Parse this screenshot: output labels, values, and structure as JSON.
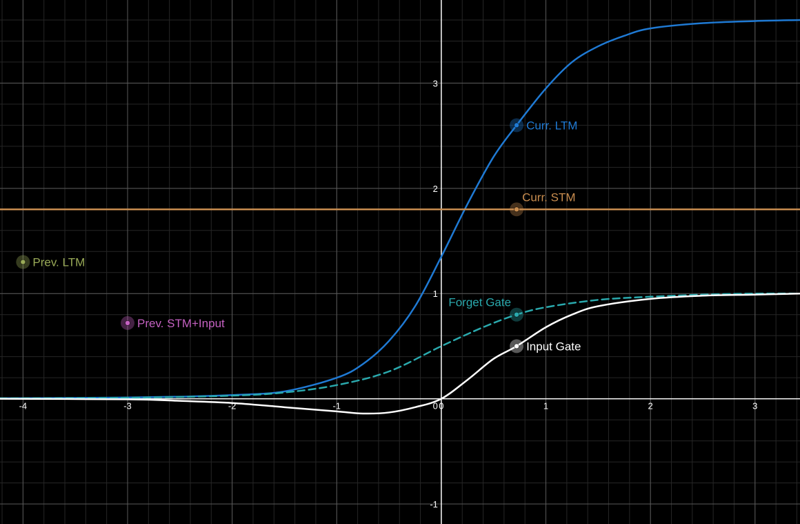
{
  "chart_data": {
    "type": "line",
    "title": "",
    "xlabel": "",
    "ylabel": "",
    "xlim": [
      -4.22,
      3.43
    ],
    "ylim": [
      -1.19,
      3.79
    ],
    "grid": true,
    "x_ticks": [
      "-4",
      "-3",
      "-2",
      "-1",
      "0",
      "1",
      "2",
      "3"
    ],
    "y_ticks": [
      "-1",
      "1",
      "2",
      "3"
    ],
    "origin_label": "0",
    "background": "#000000",
    "grid_major_color": "#5a5a5a",
    "grid_minor_color": "#262626",
    "axis_color": "#ffffff",
    "series": [
      {
        "key": "curr_ltm",
        "color": "#1f7ad4",
        "style": "solid",
        "points": [
          [
            -4.22,
            0.005
          ],
          [
            -3.5,
            0.008
          ],
          [
            -3,
            0.012
          ],
          [
            -2.5,
            0.02
          ],
          [
            -2,
            0.035
          ],
          [
            -1.5,
            0.07
          ],
          [
            -1,
            0.2
          ],
          [
            -0.75,
            0.33
          ],
          [
            -0.5,
            0.55
          ],
          [
            -0.25,
            0.88
          ],
          [
            0,
            1.35
          ],
          [
            0.25,
            1.85
          ],
          [
            0.5,
            2.3
          ],
          [
            0.72,
            2.6
          ],
          [
            1,
            2.95
          ],
          [
            1.25,
            3.2
          ],
          [
            1.5,
            3.35
          ],
          [
            1.75,
            3.45
          ],
          [
            2,
            3.52
          ],
          [
            2.5,
            3.57
          ],
          [
            3,
            3.59
          ],
          [
            3.43,
            3.6
          ]
        ]
      },
      {
        "key": "curr_stm",
        "color": "#c98d4f",
        "style": "solid",
        "points": [
          [
            -4.22,
            1.8
          ],
          [
            3.43,
            1.8
          ]
        ]
      },
      {
        "key": "forget_gate",
        "color": "#2aa9ad",
        "style": "dashed",
        "points": [
          [
            -4.22,
            0.005
          ],
          [
            -3,
            0.01
          ],
          [
            -2,
            0.03
          ],
          [
            -1.5,
            0.06
          ],
          [
            -1,
            0.13
          ],
          [
            -0.5,
            0.26
          ],
          [
            0,
            0.5
          ],
          [
            0.4,
            0.68
          ],
          [
            0.72,
            0.8
          ],
          [
            1,
            0.87
          ],
          [
            1.5,
            0.94
          ],
          [
            2,
            0.97
          ],
          [
            2.5,
            0.99
          ],
          [
            3,
            1.0
          ],
          [
            3.43,
            1.0
          ]
        ]
      },
      {
        "key": "input_gate",
        "color": "#ffffff",
        "style": "solid",
        "points": [
          [
            -4.22,
            0.0
          ],
          [
            -3,
            -0.005
          ],
          [
            -2.5,
            -0.02
          ],
          [
            -2,
            -0.04
          ],
          [
            -1.5,
            -0.08
          ],
          [
            -1,
            -0.12
          ],
          [
            -0.75,
            -0.14
          ],
          [
            -0.5,
            -0.13
          ],
          [
            -0.25,
            -0.08
          ],
          [
            0,
            0.0
          ],
          [
            0.25,
            0.18
          ],
          [
            0.5,
            0.38
          ],
          [
            0.72,
            0.5
          ],
          [
            1,
            0.68
          ],
          [
            1.25,
            0.8
          ],
          [
            1.5,
            0.88
          ],
          [
            2,
            0.95
          ],
          [
            2.5,
            0.98
          ],
          [
            3,
            0.99
          ],
          [
            3.43,
            1.0
          ]
        ]
      }
    ],
    "points": [
      {
        "key": "curr_ltm",
        "x": 0.72,
        "y": 2.6,
        "label": "Curr. LTM",
        "color": "#1f7ad4",
        "label_side": "right"
      },
      {
        "key": "curr_stm",
        "x": 0.72,
        "y": 1.8,
        "label": "Curr. STM",
        "color": "#c98d4f",
        "label_side": "above"
      },
      {
        "key": "prev_ltm",
        "x": -4.0,
        "y": 1.3,
        "label": "Prev. LTM",
        "color": "#9aab58",
        "label_side": "right"
      },
      {
        "key": "prev_stm_input",
        "x": -3.0,
        "y": 0.72,
        "label": "Prev. STM+Input",
        "color": "#c561c2",
        "label_side": "right"
      },
      {
        "key": "forget_gate",
        "x": 0.72,
        "y": 0.8,
        "label": "Forget Gate",
        "color": "#2aa9ad",
        "label_side": "above"
      },
      {
        "key": "input_gate",
        "x": 0.72,
        "y": 0.5,
        "label": "Input Gate",
        "color": "#ffffff",
        "label_side": "right"
      }
    ]
  }
}
